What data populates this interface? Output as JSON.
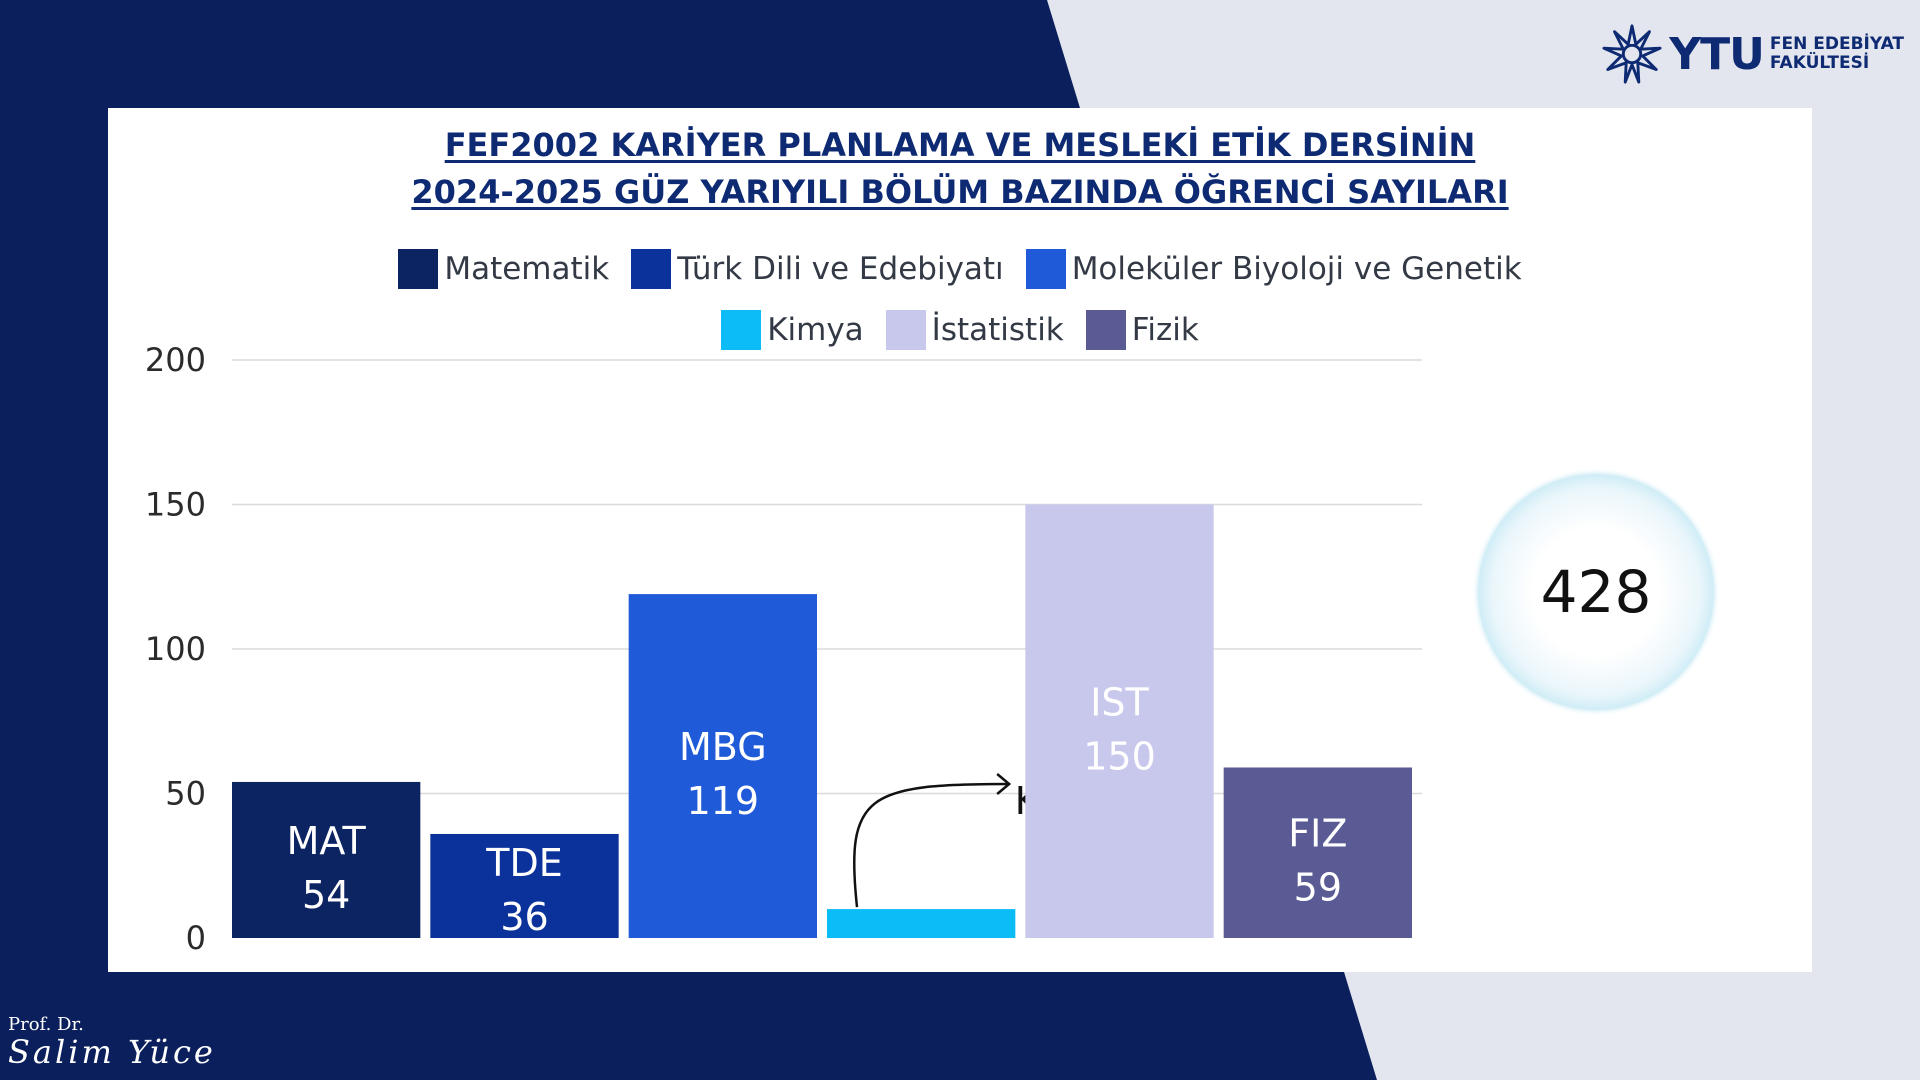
{
  "colors": {
    "navy": "#0a1f5c",
    "light_bg": "#e3e6ee"
  },
  "logo": {
    "icon": "star-burst-icon",
    "brand": "YTU",
    "line1": "FEN EDEBİYAT",
    "line2": "FAKÜLTESİ"
  },
  "signature": {
    "title": "Prof. Dr.",
    "name": "Salim Yüce"
  },
  "total": {
    "value": "428"
  },
  "chart_data": {
    "type": "bar",
    "title_lines": [
      "FEF2002 KARİYER PLANLAMA VE MESLEKİ ETİK DERSİNİN",
      "2024-2025 GÜZ YARIYILI BÖLÜM BAZINDA ÖĞRENCİ SAYILARI"
    ],
    "categories": [
      "MAT",
      "TDE",
      "MBG",
      "KIM",
      "IST",
      "FIZ"
    ],
    "values": [
      54,
      36,
      119,
      10,
      150,
      59
    ],
    "series": [
      {
        "name": "Matematik",
        "short": "MAT",
        "value": 54,
        "color": "#0d2463",
        "label_color": "#ffffff"
      },
      {
        "name": "Türk Dili ve Edebiyatı",
        "short": "TDE",
        "value": 36,
        "color": "#0b329b",
        "label_color": "#ffffff"
      },
      {
        "name": "Moleküler Biyoloji ve Genetik",
        "short": "MBG",
        "value": 119,
        "color": "#1f5ad8",
        "label_color": "#ffffff"
      },
      {
        "name": "Kimya",
        "short": "KIM",
        "value": 10,
        "color": "#0bbcf7",
        "label_color": "#111111"
      },
      {
        "name": "İstatistik",
        "short": "IST",
        "value": 150,
        "color": "#c8c8ec",
        "label_color": "#ffffff"
      },
      {
        "name": "Fizik",
        "short": "FIZ",
        "value": 59,
        "color": "#5a5a94",
        "label_color": "#ffffff"
      }
    ],
    "legend_rows": [
      [
        0,
        1,
        2
      ],
      [
        3,
        4,
        5
      ]
    ],
    "legend_position": "top",
    "yticks": [
      0,
      50,
      100,
      150,
      200
    ],
    "ylim": [
      0,
      200
    ],
    "grid": true,
    "xlabel": "",
    "ylabel": ""
  }
}
